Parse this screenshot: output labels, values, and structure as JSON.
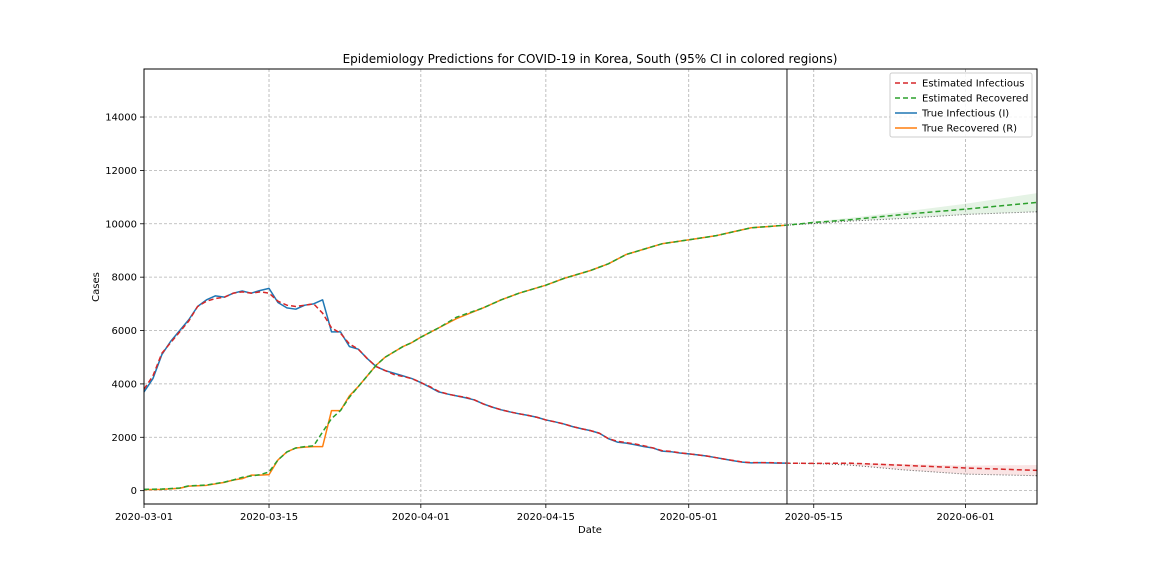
{
  "chart_data": {
    "type": "line",
    "title": "Epidemiology Predictions for COVID-19 in Korea, South (95% CI in colored regions)",
    "xlabel": "Date",
    "ylabel": "Cases",
    "xlim": [
      "2020-03-01",
      "2020-06-09"
    ],
    "ylim": [
      -500,
      15800
    ],
    "x_ticks": [
      "2020-03-01",
      "2020-03-15",
      "2020-04-01",
      "2020-04-15",
      "2020-05-01",
      "2020-05-15",
      "2020-06-01"
    ],
    "y_ticks": [
      0,
      2000,
      4000,
      6000,
      8000,
      10000,
      12000,
      14000
    ],
    "grid": true,
    "legend_position": "top-right",
    "vertical_marker_date": "2020-05-12",
    "series": [
      {
        "name": "Estimated Infectious",
        "style": "dashed",
        "color": "#d62728",
        "x": [
          "2020-03-01",
          "2020-03-02",
          "2020-03-03",
          "2020-03-04",
          "2020-03-05",
          "2020-03-06",
          "2020-03-07",
          "2020-03-08",
          "2020-03-09",
          "2020-03-10",
          "2020-03-11",
          "2020-03-12",
          "2020-03-13",
          "2020-03-14",
          "2020-03-15",
          "2020-03-16",
          "2020-03-17",
          "2020-03-18",
          "2020-03-19",
          "2020-03-20",
          "2020-03-21",
          "2020-03-22",
          "2020-03-23",
          "2020-03-24",
          "2020-03-25",
          "2020-03-26",
          "2020-03-27",
          "2020-03-28",
          "2020-03-29",
          "2020-03-30",
          "2020-03-31",
          "2020-04-01",
          "2020-04-02",
          "2020-04-03",
          "2020-04-04",
          "2020-04-05",
          "2020-04-06",
          "2020-04-07",
          "2020-04-08",
          "2020-04-09",
          "2020-04-10",
          "2020-04-11",
          "2020-04-12",
          "2020-04-13",
          "2020-04-14",
          "2020-04-15",
          "2020-04-16",
          "2020-04-17",
          "2020-04-18",
          "2020-04-19",
          "2020-04-20",
          "2020-04-21",
          "2020-04-22",
          "2020-04-23",
          "2020-04-24",
          "2020-04-25",
          "2020-04-26",
          "2020-04-27",
          "2020-04-28",
          "2020-04-29",
          "2020-04-30",
          "2020-05-01",
          "2020-05-02",
          "2020-05-03",
          "2020-05-04",
          "2020-05-05",
          "2020-05-06",
          "2020-05-07",
          "2020-05-08",
          "2020-05-09",
          "2020-05-10",
          "2020-05-11",
          "2020-05-12",
          "2020-05-15",
          "2020-05-19",
          "2020-05-25",
          "2020-06-01",
          "2020-06-09"
        ],
        "values": [
          3800,
          4300,
          5150,
          5550,
          5950,
          6350,
          6900,
          7100,
          7200,
          7250,
          7400,
          7450,
          7400,
          7450,
          7400,
          7100,
          6950,
          6900,
          6950,
          7000,
          6650,
          6100,
          5900,
          5500,
          5300,
          4950,
          4650,
          4500,
          4350,
          4280,
          4200,
          4050,
          3900,
          3720,
          3620,
          3550,
          3500,
          3400,
          3250,
          3130,
          3030,
          2950,
          2880,
          2820,
          2750,
          2650,
          2580,
          2500,
          2400,
          2320,
          2250,
          2150,
          1950,
          1850,
          1800,
          1750,
          1680,
          1600,
          1500,
          1470,
          1420,
          1380,
          1340,
          1300,
          1240,
          1180,
          1130,
          1070,
          1050,
          1050,
          1050,
          1040,
          1030,
          1020,
          1030,
          950,
          850,
          760
        ],
        "ci_lower": [
          1030,
          1020,
          960,
          780,
          620,
          560
        ],
        "ci_upper": [
          1030,
          1040,
          1030,
          1000,
          940,
          960
        ],
        "ci_x": [
          "2020-05-12",
          "2020-05-15",
          "2020-05-19",
          "2020-05-25",
          "2020-06-01",
          "2020-06-09"
        ]
      },
      {
        "name": "Estimated Recovered",
        "style": "dashed",
        "color": "#2ca02c",
        "x": [
          "2020-03-01",
          "2020-03-03",
          "2020-03-05",
          "2020-03-06",
          "2020-03-08",
          "2020-03-10",
          "2020-03-11",
          "2020-03-12",
          "2020-03-14",
          "2020-03-15",
          "2020-03-16",
          "2020-03-17",
          "2020-03-18",
          "2020-03-19",
          "2020-03-20",
          "2020-03-21",
          "2020-03-22",
          "2020-03-23",
          "2020-03-24",
          "2020-03-25",
          "2020-03-26",
          "2020-03-27",
          "2020-03-28",
          "2020-03-29",
          "2020-03-30",
          "2020-03-31",
          "2020-04-01",
          "2020-04-03",
          "2020-04-05",
          "2020-04-08",
          "2020-04-10",
          "2020-04-12",
          "2020-04-15",
          "2020-04-17",
          "2020-04-20",
          "2020-04-22",
          "2020-04-24",
          "2020-04-26",
          "2020-04-28",
          "2020-04-30",
          "2020-05-02",
          "2020-05-04",
          "2020-05-06",
          "2020-05-08",
          "2020-05-10",
          "2020-05-12",
          "2020-05-15",
          "2020-05-19",
          "2020-05-25",
          "2020-06-01",
          "2020-06-09"
        ],
        "values": [
          50,
          60,
          100,
          180,
          210,
          320,
          400,
          500,
          600,
          700,
          1150,
          1450,
          1600,
          1650,
          1680,
          2200,
          2700,
          3000,
          3500,
          3900,
          4300,
          4700,
          5000,
          5200,
          5400,
          5550,
          5750,
          6100,
          6500,
          6850,
          7150,
          7400,
          7700,
          7950,
          8250,
          8500,
          8850,
          9050,
          9250,
          9350,
          9450,
          9550,
          9700,
          9850,
          9900,
          9950,
          10050,
          10150,
          10350,
          10550,
          10800
        ],
        "ci_lower": [
          9950,
          10010,
          10100,
          10200,
          10350,
          10450
        ],
        "ci_upper": [
          9950,
          10080,
          10220,
          10450,
          10750,
          11150
        ],
        "ci_x": [
          "2020-05-12",
          "2020-05-15",
          "2020-05-19",
          "2020-05-25",
          "2020-06-01",
          "2020-06-09"
        ]
      },
      {
        "name": "True Infectious (I)",
        "style": "solid",
        "color": "#1f77b4",
        "x": [
          "2020-03-01",
          "2020-03-02",
          "2020-03-03",
          "2020-03-04",
          "2020-03-05",
          "2020-03-06",
          "2020-03-07",
          "2020-03-08",
          "2020-03-09",
          "2020-03-10",
          "2020-03-11",
          "2020-03-12",
          "2020-03-13",
          "2020-03-14",
          "2020-03-15",
          "2020-03-16",
          "2020-03-17",
          "2020-03-18",
          "2020-03-19",
          "2020-03-20",
          "2020-03-21",
          "2020-03-22",
          "2020-03-23",
          "2020-03-24",
          "2020-03-25",
          "2020-03-26",
          "2020-03-27",
          "2020-03-28",
          "2020-03-29",
          "2020-03-30",
          "2020-03-31",
          "2020-04-01",
          "2020-04-02",
          "2020-04-03",
          "2020-04-04",
          "2020-04-05",
          "2020-04-06",
          "2020-04-07",
          "2020-04-08",
          "2020-04-09",
          "2020-04-10",
          "2020-04-11",
          "2020-04-12",
          "2020-04-13",
          "2020-04-14",
          "2020-04-15",
          "2020-04-16",
          "2020-04-17",
          "2020-04-18",
          "2020-04-19",
          "2020-04-20",
          "2020-04-21",
          "2020-04-22",
          "2020-04-23",
          "2020-04-24",
          "2020-04-25",
          "2020-04-26",
          "2020-04-27",
          "2020-04-28",
          "2020-04-29",
          "2020-04-30",
          "2020-05-01",
          "2020-05-02",
          "2020-05-03",
          "2020-05-04",
          "2020-05-05",
          "2020-05-06",
          "2020-05-07",
          "2020-05-08",
          "2020-05-09",
          "2020-05-10",
          "2020-05-11",
          "2020-05-12"
        ],
        "values": [
          3700,
          4200,
          5100,
          5600,
          6000,
          6400,
          6900,
          7150,
          7300,
          7250,
          7400,
          7480,
          7400,
          7500,
          7580,
          7050,
          6850,
          6800,
          6950,
          7000,
          7150,
          5950,
          5950,
          5400,
          5300,
          4950,
          4650,
          4500,
          4400,
          4300,
          4200,
          4050,
          3880,
          3700,
          3620,
          3550,
          3480,
          3400,
          3250,
          3130,
          3030,
          2950,
          2880,
          2820,
          2750,
          2650,
          2580,
          2500,
          2400,
          2320,
          2250,
          2150,
          1950,
          1820,
          1780,
          1720,
          1650,
          1600,
          1480,
          1460,
          1410,
          1380,
          1340,
          1300,
          1240,
          1180,
          1120,
          1070,
          1040,
          1050,
          1040,
          1030,
          1030
        ]
      },
      {
        "name": "True Recovered (R)",
        "style": "solid",
        "color": "#ff7f0e",
        "x": [
          "2020-03-01",
          "2020-03-03",
          "2020-03-05",
          "2020-03-06",
          "2020-03-08",
          "2020-03-10",
          "2020-03-11",
          "2020-03-12",
          "2020-03-13",
          "2020-03-14",
          "2020-03-15",
          "2020-03-16",
          "2020-03-17",
          "2020-03-18",
          "2020-03-19",
          "2020-03-20",
          "2020-03-21",
          "2020-03-22",
          "2020-03-23",
          "2020-03-24",
          "2020-03-25",
          "2020-03-26",
          "2020-03-27",
          "2020-03-28",
          "2020-03-29",
          "2020-03-30",
          "2020-03-31",
          "2020-04-01",
          "2020-04-03",
          "2020-04-05",
          "2020-04-08",
          "2020-04-10",
          "2020-04-12",
          "2020-04-15",
          "2020-04-17",
          "2020-04-20",
          "2020-04-22",
          "2020-04-24",
          "2020-04-26",
          "2020-04-28",
          "2020-04-30",
          "2020-05-02",
          "2020-05-04",
          "2020-05-06",
          "2020-05-08",
          "2020-05-10",
          "2020-05-12"
        ],
        "values": [
          40,
          50,
          90,
          170,
          200,
          310,
          400,
          450,
          580,
          580,
          600,
          1150,
          1450,
          1600,
          1630,
          1650,
          1650,
          3000,
          3000,
          3550,
          3900,
          4300,
          4700,
          5000,
          5200,
          5400,
          5550,
          5750,
          6100,
          6450,
          6850,
          7150,
          7400,
          7700,
          7950,
          8250,
          8500,
          8850,
          9050,
          9250,
          9350,
          9450,
          9550,
          9700,
          9850,
          9900,
          9950
        ]
      }
    ]
  }
}
